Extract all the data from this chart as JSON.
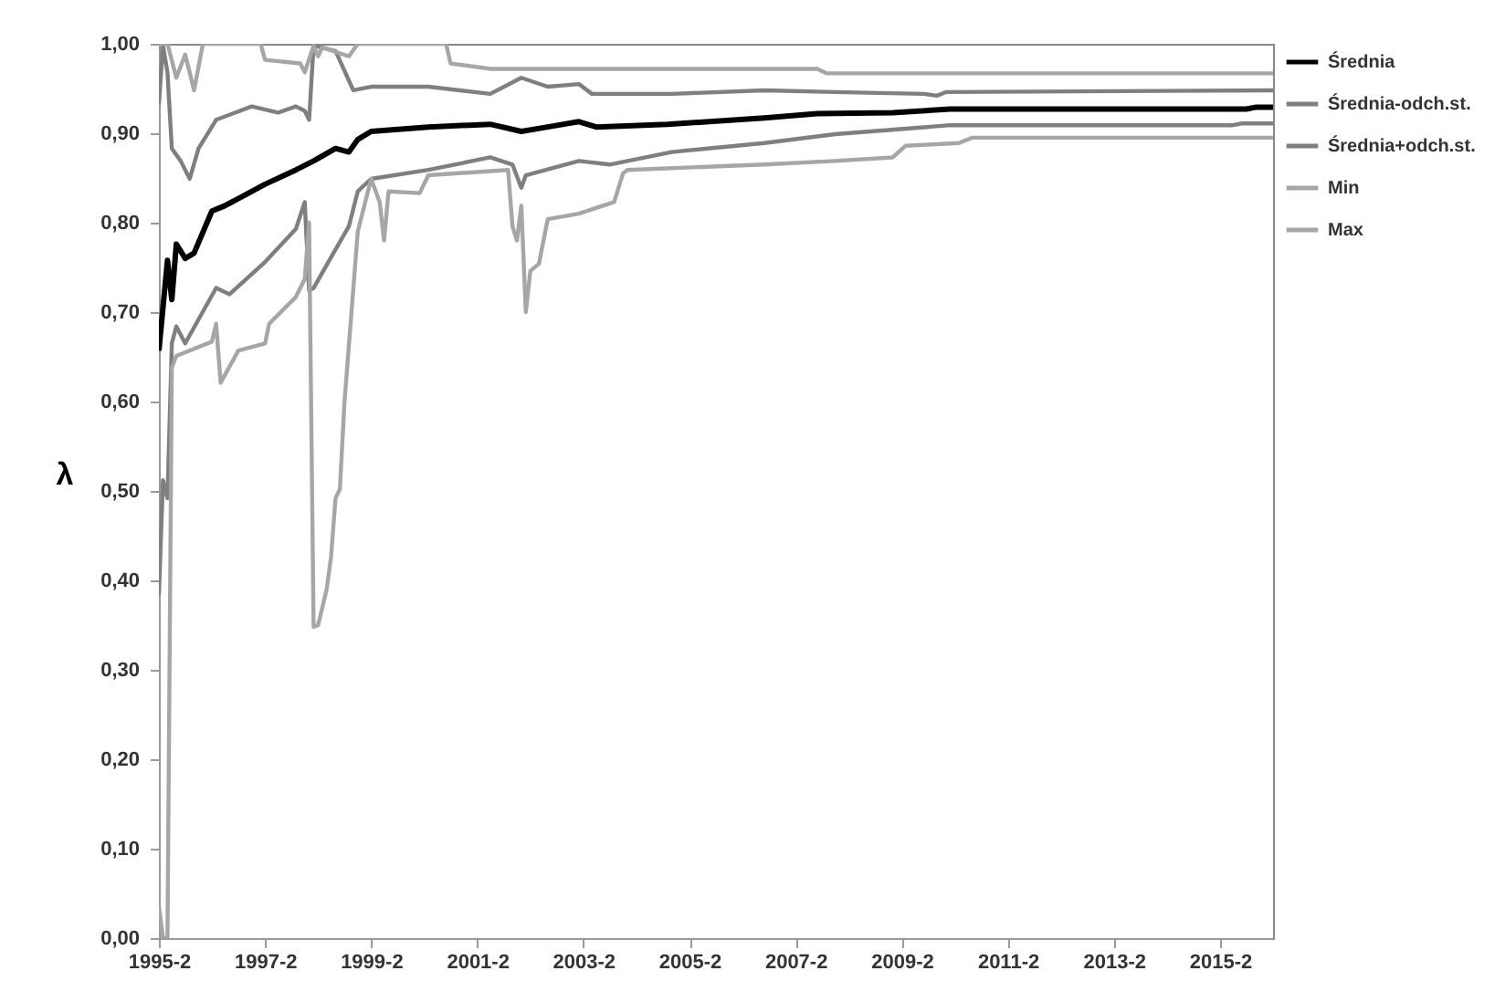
{
  "chart_data": {
    "type": "line",
    "ylabel": "λ",
    "legend": "right",
    "grid": false,
    "xlim": [
      "1995-02",
      "2016-02"
    ],
    "xticks": [
      {
        "value": "1995-02",
        "label": "1995-2"
      },
      {
        "value": "1997-02",
        "label": "1997-2"
      },
      {
        "value": "1999-02",
        "label": "1999-2"
      },
      {
        "value": "2001-02",
        "label": "2001-2"
      },
      {
        "value": "2003-02",
        "label": "2003-2"
      },
      {
        "value": "2005-02",
        "label": "2005-2"
      },
      {
        "value": "2007-02",
        "label": "2007-2"
      },
      {
        "value": "2009-02",
        "label": "2009-2"
      },
      {
        "value": "2011-02",
        "label": "2011-2"
      },
      {
        "value": "2013-02",
        "label": "2013-2"
      },
      {
        "value": "2015-02",
        "label": "2015-2"
      }
    ],
    "ylim": [
      0,
      1
    ],
    "yticks": [
      {
        "value": 0,
        "label": "0,00"
      },
      {
        "value": 0.1,
        "label": "0,10"
      },
      {
        "value": 0.2,
        "label": "0,20"
      },
      {
        "value": 0.3,
        "label": "0,30"
      },
      {
        "value": 0.4,
        "label": "0,40"
      },
      {
        "value": 0.5,
        "label": "0,50"
      },
      {
        "value": 0.6,
        "label": "0,60"
      },
      {
        "value": 0.7,
        "label": "0,70"
      },
      {
        "value": 0.8,
        "label": "0,80"
      },
      {
        "value": 0.9,
        "label": "0,90"
      },
      {
        "value": 1,
        "label": "1,00"
      }
    ],
    "series": [
      {
        "name": "Średnia",
        "color": "#000000",
        "x": [
          "1995-02",
          "1995-04",
          "1995-05",
          "1995-06",
          "1995-08",
          "1995-10",
          "1996-02",
          "1996-05",
          "1997-02",
          "1997-09",
          "1998-01",
          "1998-06",
          "1998-09",
          "1998-11",
          "1999-02",
          "2000-03",
          "2001-05",
          "2001-12",
          "2002-06",
          "2003-01",
          "2003-05",
          "2004-09",
          "2006-07",
          "2007-07",
          "2008-12",
          "2010-01",
          "2015-08",
          "2015-10",
          "2016-02"
        ],
        "values": [
          0.657,
          0.758,
          0.714,
          0.776,
          0.76,
          0.766,
          0.813,
          0.819,
          0.843,
          0.859,
          0.869,
          0.883,
          0.879,
          0.893,
          0.902,
          0.907,
          0.91,
          0.902,
          0.907,
          0.913,
          0.907,
          0.91,
          0.917,
          0.922,
          0.923,
          0.927,
          0.927,
          0.929,
          0.929
        ]
      },
      {
        "name": "Średnia-odch.st.",
        "color": "#7f7f7f",
        "x": [
          "1995-02",
          "1995-03",
          "1995-04",
          "1995-05",
          "1995-06",
          "1995-08",
          "1996-03",
          "1996-06",
          "1997-02",
          "1997-09",
          "1997-11",
          "1997-12",
          "1998-01",
          "1998-06",
          "1998-09",
          "1998-11",
          "1999-02",
          "2000-03",
          "2001-05",
          "2001-10",
          "2001-12",
          "2002-01",
          "2003-01",
          "2003-08",
          "2004-10",
          "2006-07",
          "2007-11",
          "2010-01",
          "2015-05",
          "2015-07",
          "2016-02"
        ],
        "values": [
          0.383,
          0.512,
          0.492,
          0.665,
          0.684,
          0.665,
          0.727,
          0.72,
          0.756,
          0.793,
          0.823,
          0.724,
          0.727,
          0.77,
          0.796,
          0.835,
          0.849,
          0.859,
          0.873,
          0.865,
          0.839,
          0.853,
          0.869,
          0.865,
          0.879,
          0.889,
          0.899,
          0.909,
          0.909,
          0.911,
          0.911
        ]
      },
      {
        "name": "Średnia+odch.st.",
        "color": "#7f7f7f",
        "x": [
          "1995-02",
          "1995-03",
          "1995-04",
          "1995-05",
          "1995-07",
          "1995-09",
          "1995-11",
          "1996-03",
          "1996-11",
          "1997-05",
          "1997-09",
          "1997-11",
          "1997-12",
          "1998-01",
          "1998-06",
          "1998-10",
          "1999-02",
          "2000-03",
          "2001-05",
          "2001-12",
          "2002-06",
          "2003-01",
          "2003-04",
          "2004-10",
          "2006-07",
          "2007-11",
          "2009-07",
          "2009-10",
          "2009-12",
          "2016-02"
        ],
        "values": [
          0.932,
          0.998,
          0.968,
          0.883,
          0.869,
          0.849,
          0.883,
          0.915,
          0.93,
          0.923,
          0.93,
          0.925,
          0.915,
          0.998,
          0.992,
          0.948,
          0.952,
          0.952,
          0.944,
          0.962,
          0.952,
          0.955,
          0.944,
          0.944,
          0.948,
          0.946,
          0.944,
          0.942,
          0.946,
          0.948
        ]
      },
      {
        "name": "Min",
        "color": "#a6a6a6",
        "x": [
          "1995-02",
          "1995-03",
          "1995-04",
          "1995-05",
          "1995-06",
          "1996-02",
          "1996-03",
          "1996-04",
          "1996-08",
          "1997-02",
          "1997-03",
          "1997-09",
          "1997-11",
          "1997-12",
          "1998-01",
          "1998-02",
          "1998-04",
          "1998-05",
          "1998-06",
          "1998-07",
          "1998-08",
          "1998-11",
          "1999-02",
          "1999-04",
          "1999-05",
          "1999-06",
          "2000-01",
          "2000-03",
          "2001-09",
          "2001-10",
          "2001-11",
          "2001-12",
          "2002-01",
          "2002-02",
          "2002-04",
          "2002-06",
          "2003-01",
          "2003-09",
          "2003-11",
          "2003-12",
          "2006-07",
          "2007-11",
          "2008-12",
          "2009-03",
          "2010-03",
          "2010-06",
          "2016-02"
        ],
        "values": [
          0.036,
          0,
          0,
          0.638,
          0.651,
          0.667,
          0.687,
          0.621,
          0.657,
          0.665,
          0.687,
          0.717,
          0.737,
          0.8,
          0.348,
          0.35,
          0.39,
          0.426,
          0.492,
          0.502,
          0.598,
          0.79,
          0.849,
          0.823,
          0.78,
          0.835,
          0.833,
          0.853,
          0.859,
          0.796,
          0.78,
          0.819,
          0.7,
          0.746,
          0.754,
          0.804,
          0.81,
          0.823,
          0.855,
          0.859,
          0.865,
          0.869,
          0.873,
          0.886,
          0.889,
          0.895,
          0.895
        ]
      },
      {
        "name": "Max",
        "color": "#a6a6a6",
        "x": [
          "1995-02",
          "1995-04",
          "1995-06",
          "1995-08",
          "1995-09",
          "1995-10",
          "1995-12",
          "1997-01",
          "1997-02",
          "1997-10",
          "1997-11",
          "1998-01",
          "1998-02",
          "1998-03",
          "1998-09",
          "1998-11",
          "2000-07",
          "2000-08",
          "2001-05",
          "2007-07",
          "2007-09",
          "2016-02"
        ],
        "values": [
          1,
          1,
          0.962,
          0.988,
          0.968,
          0.948,
          1,
          1,
          0.982,
          0.978,
          0.968,
          0.998,
          0.986,
          0.996,
          0.986,
          1,
          1,
          0.978,
          0.972,
          0.972,
          0.967,
          0.967
        ]
      }
    ]
  }
}
